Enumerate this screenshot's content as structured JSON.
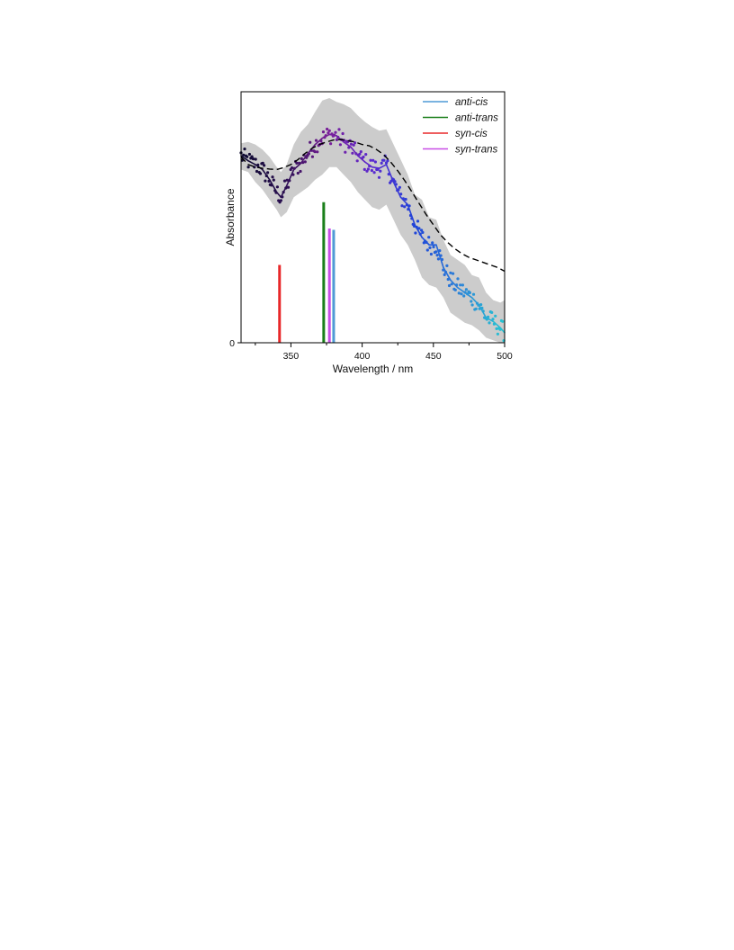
{
  "chart_data": {
    "type": "line",
    "xlabel": "Wavelength / nm",
    "ylabel": "Absorbance",
    "xlim": [
      315,
      500
    ],
    "ylim": [
      0,
      1.0
    ],
    "x_ticks": [
      350,
      400,
      450,
      500
    ],
    "x_minor_ticks": [
      325,
      375,
      425,
      475
    ],
    "y_ticks": [
      0
    ],
    "legend": {
      "position": "top-right",
      "entries": [
        {
          "name": "anti-cis",
          "color": "#4f9ad6"
        },
        {
          "name": "anti-trans",
          "color": "#1a7f1a"
        },
        {
          "name": "syn-cis",
          "color": "#e8282a"
        },
        {
          "name": "syn-trans",
          "color": "#c84fe6"
        }
      ]
    },
    "series": [
      {
        "role": "experimental smoothed",
        "colors": [
          "#0d0a30",
          "#2b0f52",
          "#7a1f9a",
          "#5a2ad0",
          "#1f46d8",
          "#2d86d8",
          "#27c5d2"
        ],
        "x": [
          315,
          320,
          325,
          330,
          335,
          340,
          343,
          347,
          352,
          357,
          362,
          367,
          372,
          377,
          382,
          387,
          392,
          397,
          402,
          407,
          412,
          417,
          422,
          427,
          432,
          437,
          442,
          447,
          452,
          457,
          462,
          467,
          472,
          477,
          482,
          487,
          492,
          497,
          500
        ],
        "y": [
          0.745,
          0.725,
          0.71,
          0.69,
          0.65,
          0.6,
          0.58,
          0.625,
          0.69,
          0.715,
          0.755,
          0.79,
          0.815,
          0.83,
          0.825,
          0.8,
          0.78,
          0.745,
          0.72,
          0.7,
          0.695,
          0.71,
          0.64,
          0.58,
          0.55,
          0.47,
          0.42,
          0.39,
          0.39,
          0.3,
          0.25,
          0.22,
          0.2,
          0.18,
          0.15,
          0.1,
          0.085,
          0.06,
          0.04
        ]
      },
      {
        "role": "theory dashed",
        "color": "#000000",
        "x": [
          315,
          320,
          325,
          330,
          335,
          340,
          345,
          350,
          355,
          360,
          365,
          370,
          375,
          380,
          385,
          390,
          395,
          400,
          405,
          410,
          415,
          420,
          425,
          430,
          435,
          440,
          445,
          450,
          455,
          460,
          465,
          470,
          475,
          480,
          485,
          490,
          495,
          500
        ],
        "y": [
          0.74,
          0.71,
          0.7,
          0.695,
          0.692,
          0.69,
          0.698,
          0.71,
          0.73,
          0.755,
          0.775,
          0.79,
          0.8,
          0.808,
          0.81,
          0.805,
          0.8,
          0.79,
          0.785,
          0.77,
          0.75,
          0.72,
          0.685,
          0.645,
          0.6,
          0.555,
          0.51,
          0.47,
          0.43,
          0.4,
          0.375,
          0.355,
          0.34,
          0.33,
          0.32,
          0.31,
          0.3,
          0.285
        ]
      }
    ],
    "uncertainty_band": {
      "color": "#cccccc",
      "x": [
        315,
        320,
        325,
        330,
        335,
        340,
        343,
        347,
        352,
        357,
        362,
        367,
        372,
        377,
        382,
        387,
        392,
        397,
        402,
        407,
        412,
        417,
        422,
        427,
        432,
        437,
        442,
        447,
        452,
        457,
        462,
        467,
        472,
        477,
        482,
        487,
        492,
        497,
        500
      ],
      "upper": [
        0.795,
        0.8,
        0.79,
        0.77,
        0.74,
        0.7,
        0.68,
        0.71,
        0.79,
        0.84,
        0.87,
        0.92,
        0.965,
        0.975,
        0.96,
        0.95,
        0.935,
        0.905,
        0.88,
        0.86,
        0.845,
        0.85,
        0.79,
        0.73,
        0.67,
        0.59,
        0.57,
        0.5,
        0.49,
        0.41,
        0.35,
        0.33,
        0.31,
        0.27,
        0.26,
        0.2,
        0.17,
        0.16,
        0.17
      ],
      "lower": [
        0.69,
        0.68,
        0.64,
        0.61,
        0.57,
        0.53,
        0.5,
        0.52,
        0.58,
        0.6,
        0.62,
        0.65,
        0.67,
        0.7,
        0.7,
        0.67,
        0.64,
        0.6,
        0.57,
        0.54,
        0.53,
        0.55,
        0.49,
        0.43,
        0.39,
        0.33,
        0.26,
        0.23,
        0.22,
        0.18,
        0.12,
        0.1,
        0.08,
        0.07,
        0.05,
        0.02,
        0.01,
        0.0,
        0.0
      ]
    },
    "sticks": [
      {
        "name": "syn-cis",
        "x": 342,
        "y": 0.31,
        "color": "#e8282a"
      },
      {
        "name": "anti-trans",
        "x": 373,
        "y": 0.56,
        "color": "#1a7f1a"
      },
      {
        "name": "syn-trans",
        "x": 377,
        "y": 0.455,
        "color": "#c84fe6"
      },
      {
        "name": "anti-cis",
        "x": 380,
        "y": 0.45,
        "color": "#4f9ad6"
      }
    ]
  }
}
